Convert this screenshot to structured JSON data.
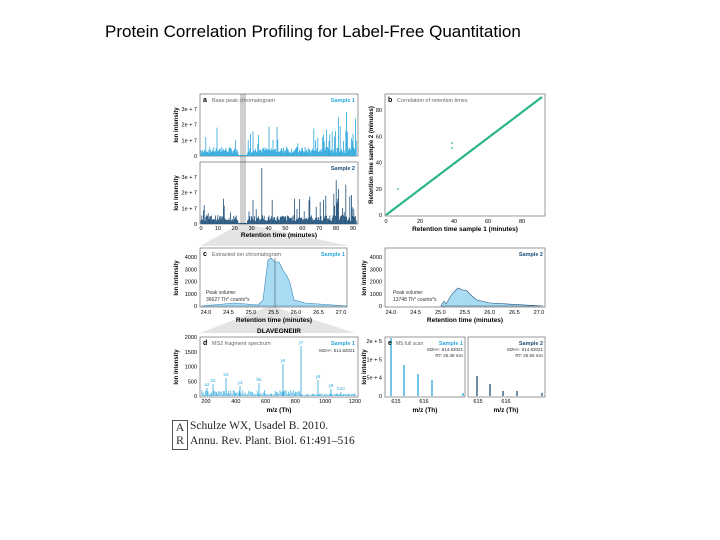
{
  "slide_title": "Protein Correlation Profiling for Label-Free Quantitation",
  "figure": {
    "colors": {
      "sample1": "#2aa7dc",
      "sample2": "#1d4f7a",
      "correlation": "#2bb58a",
      "fill": "#a9dcf3"
    },
    "a": {
      "letter": "a",
      "title": "Base peak chromatogram",
      "sample1": "Sample 1",
      "sample2": "Sample 2",
      "ylabel": "Ion intensity",
      "yticks": [
        "0",
        "1e + 7",
        "2e + 7",
        "3e + 7"
      ],
      "xticks": [
        "0",
        "10",
        "20",
        "30",
        "40",
        "50",
        "60",
        "70",
        "80",
        "90"
      ],
      "xlabel": "Retention time (minutes)"
    },
    "b": {
      "letter": "b",
      "title": "Correlation of retention times",
      "ylabel": "Retention time sample 2 (minutes)",
      "xlabel": "Retention time sample 1 (minutes)",
      "yticks": [
        "0",
        "20",
        "40",
        "60",
        "80"
      ],
      "xticks": [
        "0",
        "20",
        "40",
        "60",
        "80"
      ]
    },
    "c": {
      "letter": "c",
      "title": "Extracted ion chromatogram",
      "sample1": "Sample 1",
      "sample2": "Sample 2",
      "ylabel": "Ion intensity",
      "yticks": [
        "0",
        "1000",
        "2000",
        "3000",
        "4000"
      ],
      "xticks": [
        "24.0",
        "24.5",
        "25.0",
        "25.5",
        "26.0",
        "26.5",
        "27.0"
      ],
      "xlabel": "Retention time (minutes)",
      "peak1_label": "Peak volume:",
      "peak1_value": "36627 Th* counts*s",
      "peak2_label": "Peak volume:",
      "peak2_value": "13748 Th* counts*s"
    },
    "peptide": "DLAVEGNEIIR",
    "d": {
      "letter": "d",
      "title": "MS2 fragment spectrum",
      "sample1": "Sample 1",
      "precursor": "M2H+: 614.83021",
      "ylabel": "Ion intensity",
      "yticks": [
        "0",
        "500",
        "1000",
        "1500",
        "2000"
      ],
      "xticks": [
        "200",
        "400",
        "600",
        "800",
        "1000",
        "1200"
      ],
      "xlabel": "m/z (Th)",
      "ions": [
        "a2",
        "b2",
        "b3",
        "y3",
        "b5",
        "y6",
        "y7",
        "y8",
        "y9",
        "b10"
      ]
    },
    "e": {
      "letter": "e",
      "title": "MS full scan",
      "sample1": "Sample 1",
      "sample2": "Sample 2",
      "precursor1": "M2H+: 614.83021",
      "rt1": "RT: 25.39 min",
      "precursor2": "M2H+: 614.83021",
      "rt2": "RT: 25.55 min",
      "ylabel": "Ion intensity",
      "yticks": [
        "0",
        "5e + 4",
        "1e + 5",
        "2e + 5"
      ],
      "xticks": [
        "615",
        "616"
      ],
      "xlabel": "m/z (Th)"
    }
  },
  "citation": {
    "line1": "Schulze WX, Usadel B. 2010.",
    "line2": "Annu. Rev. Plant. Biol. 61:491–516",
    "logo": "AR"
  }
}
